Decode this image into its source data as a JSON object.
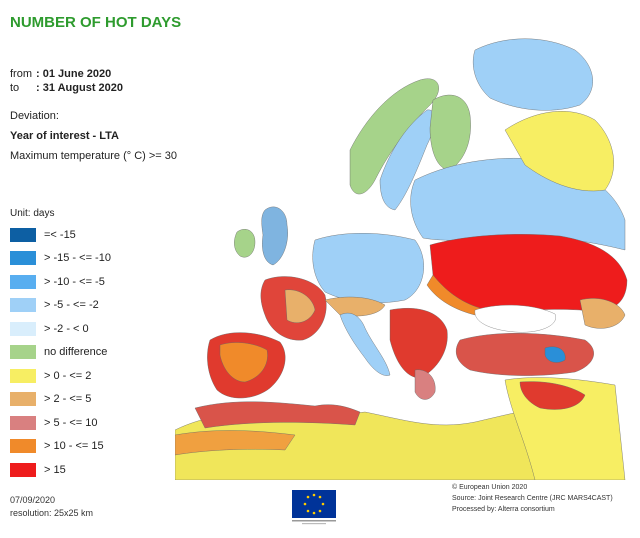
{
  "header": {
    "title": "NUMBER OF HOT DAYS",
    "from_label": "from",
    "from_value": ": 01 June 2020",
    "to_label": "to",
    "to_value": ": 31 August 2020",
    "deviation_label": "Deviation:",
    "comparison": "Year of interest - LTA",
    "criterion": "Maximum temperature (° C) >= 30"
  },
  "legend": {
    "unit": "Unit: days",
    "items": [
      {
        "label": "=< -15",
        "color": "#0d5fa3"
      },
      {
        "label": "> -15 - <= -10",
        "color": "#2a8fd8"
      },
      {
        "label": "> -10 - <= -5",
        "color": "#58aef0"
      },
      {
        "label": "> -5 - <= -2",
        "color": "#9fd0f7"
      },
      {
        "label": "> -2 - < 0",
        "color": "#d9eefc"
      },
      {
        "label": "no difference",
        "color": "#a6d38a"
      },
      {
        "label": "> 0 - <= 2",
        "color": "#f7ee63"
      },
      {
        "label": "> 2 - <= 5",
        "color": "#e8b06a"
      },
      {
        "label": "> 5 - <= 10",
        "color": "#d98080"
      },
      {
        "label": "> 10 - <= 15",
        "color": "#f08a2a"
      },
      {
        "label": "> 15",
        "color": "#ee1c1c"
      }
    ]
  },
  "footer": {
    "date": "07/09/2020",
    "resolution": "resolution: 25x25 km",
    "copyright": "© European Union 2020",
    "source": "Source: Joint Research Centre (JRC MARS4CAST)",
    "processed": "Processed by: Alterra consortium",
    "logo_caption": "European Commission"
  },
  "colors": {
    "sea": "#ffffff",
    "title": "#2e9b2e",
    "border": "#555555"
  }
}
